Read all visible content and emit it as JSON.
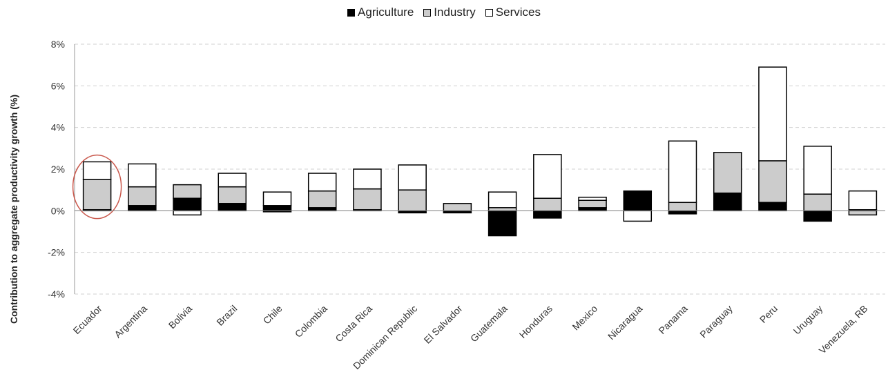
{
  "legend": {
    "agriculture": "Agriculture",
    "industry": "Industry",
    "services": "Services"
  },
  "chart_data": {
    "type": "bar",
    "stacked": true,
    "ylabel": "Contribution to aggregate productivity growth (%)",
    "xlabel": "",
    "ylim": [
      -4,
      8
    ],
    "yticks": [
      -4,
      -2,
      0,
      2,
      4,
      6,
      8
    ],
    "ytick_labels": [
      "-4%",
      "-2%",
      "0%",
      "2%",
      "4%",
      "6%",
      "8%"
    ],
    "grid": true,
    "legend_position": "top",
    "highlight": "Ecuador",
    "categories": [
      "Ecuador",
      "Argentina",
      "Bolivia",
      "Brazil",
      "Chile",
      "Colombia",
      "Costa Rica",
      "Dominican Republic",
      "El Salvador",
      "Guatemala",
      "Honduras",
      "Mexico",
      "Nicaragua",
      "Panama",
      "Paraguay",
      "Peru",
      "Uruguay",
      "Venezuela, RB"
    ],
    "series": [
      {
        "name": "Agriculture",
        "color": "#000000",
        "values": [
          0.05,
          0.25,
          0.6,
          0.35,
          0.25,
          0.15,
          0.05,
          -0.1,
          -0.1,
          -1.2,
          -0.35,
          0.15,
          0.9,
          -0.15,
          0.85,
          0.4,
          -0.5,
          0.05
        ]
      },
      {
        "name": "Industry",
        "color": "#cccccc",
        "values": [
          1.45,
          0.9,
          0.65,
          0.8,
          -0.05,
          0.8,
          1.0,
          1.0,
          0.35,
          0.15,
          0.6,
          0.35,
          0.05,
          0.4,
          1.95,
          2.0,
          0.8,
          -0.2
        ]
      },
      {
        "name": "Services",
        "color": "#ffffff",
        "values": [
          0.85,
          1.1,
          -0.2,
          0.65,
          0.65,
          0.85,
          0.95,
          1.2,
          0.0,
          0.75,
          2.1,
          0.15,
          -0.5,
          2.95,
          0.0,
          4.5,
          2.3,
          0.9
        ]
      }
    ]
  }
}
